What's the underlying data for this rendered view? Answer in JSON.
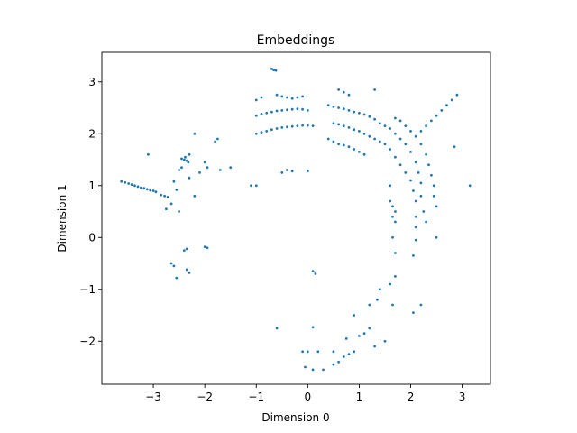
{
  "chart_data": {
    "type": "scatter",
    "title": "Embeddings",
    "xlabel": "Dimension 0",
    "ylabel": "Dimension 1",
    "xlim": [
      -4.0,
      3.55
    ],
    "ylim": [
      -2.83,
      3.57
    ],
    "xticks": [
      -3,
      -2,
      -1,
      0,
      1,
      2,
      3
    ],
    "yticks": [
      -2,
      -1,
      0,
      1,
      2,
      3
    ],
    "grid": false,
    "legend": "none",
    "marker_color": "#1f77b4",
    "series": [
      {
        "values": [
          [
            -3.62,
            1.08
          ],
          [
            -3.55,
            1.06
          ],
          [
            -3.48,
            1.04
          ],
          [
            -3.42,
            1.02
          ],
          [
            -3.36,
            1.0
          ],
          [
            -3.3,
            0.98
          ],
          [
            -3.24,
            0.96
          ],
          [
            -3.18,
            0.95
          ],
          [
            -3.12,
            0.93
          ],
          [
            -3.06,
            0.91
          ],
          [
            -3.0,
            0.9
          ],
          [
            -2.95,
            0.88
          ],
          [
            -2.85,
            0.82
          ],
          [
            -2.78,
            0.8
          ],
          [
            -2.72,
            0.78
          ],
          [
            -2.6,
            1.08
          ],
          [
            -2.55,
            0.92
          ],
          [
            -2.65,
            0.65
          ],
          [
            -2.75,
            0.55
          ],
          [
            -2.5,
            0.5
          ],
          [
            -2.45,
            1.52
          ],
          [
            -2.4,
            1.5
          ],
          [
            -2.38,
            1.55
          ],
          [
            -2.35,
            1.48
          ],
          [
            -2.32,
            1.45
          ],
          [
            -2.3,
            1.6
          ],
          [
            -2.5,
            1.3
          ],
          [
            -2.45,
            1.35
          ],
          [
            -2.3,
            1.15
          ],
          [
            -2.2,
            0.8
          ],
          [
            -2.1,
            1.25
          ],
          [
            -2.0,
            1.45
          ],
          [
            -1.95,
            1.35
          ],
          [
            -1.7,
            1.3
          ],
          [
            -1.5,
            1.35
          ],
          [
            -2.2,
            2.0
          ],
          [
            -1.8,
            1.85
          ],
          [
            -1.75,
            1.9
          ],
          [
            -3.1,
            1.6
          ],
          [
            -2.4,
            -0.25
          ],
          [
            -2.35,
            -0.22
          ],
          [
            -2.6,
            -0.55
          ],
          [
            -2.65,
            -0.5
          ],
          [
            -2.55,
            -0.78
          ],
          [
            -2.35,
            -0.62
          ],
          [
            -2.3,
            -0.68
          ],
          [
            -2.0,
            -0.18
          ],
          [
            -1.95,
            -0.2
          ],
          [
            -1.1,
            1.0
          ],
          [
            -1.0,
            1.0
          ],
          [
            -0.5,
            1.25
          ],
          [
            -0.4,
            1.3
          ],
          [
            -0.3,
            1.28
          ],
          [
            0.0,
            1.28
          ],
          [
            -1.0,
            2.0
          ],
          [
            -0.9,
            2.03
          ],
          [
            -0.8,
            2.05
          ],
          [
            -0.7,
            2.08
          ],
          [
            -0.6,
            2.1
          ],
          [
            -0.5,
            2.12
          ],
          [
            -0.4,
            2.13
          ],
          [
            -0.3,
            2.14
          ],
          [
            -0.2,
            2.15
          ],
          [
            -0.1,
            2.16
          ],
          [
            0.0,
            2.16
          ],
          [
            0.1,
            2.15
          ],
          [
            -1.0,
            2.35
          ],
          [
            -0.9,
            2.38
          ],
          [
            -0.8,
            2.4
          ],
          [
            -0.7,
            2.42
          ],
          [
            -0.6,
            2.44
          ],
          [
            -0.5,
            2.45
          ],
          [
            -0.4,
            2.46
          ],
          [
            -0.3,
            2.47
          ],
          [
            -0.2,
            2.48
          ],
          [
            -0.1,
            2.47
          ],
          [
            0.0,
            2.45
          ],
          [
            -1.0,
            2.65
          ],
          [
            -0.9,
            2.7
          ],
          [
            -0.6,
            2.75
          ],
          [
            -0.5,
            2.72
          ],
          [
            -0.4,
            2.7
          ],
          [
            -0.3,
            2.68
          ],
          [
            -0.2,
            2.7
          ],
          [
            -0.1,
            2.72
          ],
          [
            -0.7,
            3.25
          ],
          [
            -0.66,
            3.23
          ],
          [
            -0.62,
            3.22
          ],
          [
            0.4,
            2.55
          ],
          [
            0.5,
            2.52
          ],
          [
            0.6,
            2.5
          ],
          [
            0.7,
            2.48
          ],
          [
            0.8,
            2.45
          ],
          [
            0.9,
            2.42
          ],
          [
            1.0,
            2.4
          ],
          [
            1.1,
            2.37
          ],
          [
            1.2,
            2.33
          ],
          [
            1.3,
            2.28
          ],
          [
            0.5,
            2.2
          ],
          [
            0.6,
            2.18
          ],
          [
            0.7,
            2.15
          ],
          [
            0.8,
            2.12
          ],
          [
            0.9,
            2.08
          ],
          [
            1.0,
            2.05
          ],
          [
            1.1,
            2.0
          ],
          [
            1.2,
            1.95
          ],
          [
            1.3,
            1.9
          ],
          [
            1.4,
            1.85
          ],
          [
            0.4,
            1.9
          ],
          [
            0.5,
            1.85
          ],
          [
            0.6,
            1.8
          ],
          [
            0.7,
            1.78
          ],
          [
            0.8,
            1.75
          ],
          [
            0.9,
            1.7
          ],
          [
            1.0,
            1.65
          ],
          [
            1.1,
            1.6
          ],
          [
            0.6,
            2.85
          ],
          [
            0.7,
            2.8
          ],
          [
            0.8,
            2.75
          ],
          [
            1.3,
            2.85
          ],
          [
            1.4,
            2.2
          ],
          [
            1.5,
            2.15
          ],
          [
            1.6,
            2.1
          ],
          [
            1.7,
            2.0
          ],
          [
            1.8,
            1.9
          ],
          [
            1.9,
            1.8
          ],
          [
            2.0,
            1.65
          ],
          [
            2.1,
            1.45
          ],
          [
            2.15,
            1.25
          ],
          [
            2.2,
            1.05
          ],
          [
            2.2,
            0.8
          ],
          [
            2.25,
            0.5
          ],
          [
            1.5,
            1.8
          ],
          [
            1.6,
            1.7
          ],
          [
            1.7,
            1.55
          ],
          [
            1.8,
            1.4
          ],
          [
            1.9,
            1.25
          ],
          [
            2.0,
            1.1
          ],
          [
            2.05,
            0.9
          ],
          [
            2.1,
            0.7
          ],
          [
            2.1,
            0.4
          ],
          [
            2.1,
            0.2
          ],
          [
            2.1,
            -0.05
          ],
          [
            2.05,
            -0.35
          ],
          [
            1.7,
            2.3
          ],
          [
            1.8,
            2.25
          ],
          [
            1.9,
            2.15
          ],
          [
            2.0,
            2.05
          ],
          [
            2.1,
            1.95
          ],
          [
            2.2,
            1.8
          ],
          [
            2.3,
            1.6
          ],
          [
            2.35,
            1.4
          ],
          [
            2.4,
            1.2
          ],
          [
            2.45,
            1.0
          ],
          [
            2.45,
            0.8
          ],
          [
            2.5,
            0.6
          ],
          [
            1.6,
            0.7
          ],
          [
            1.65,
            0.6
          ],
          [
            1.7,
            0.5
          ],
          [
            1.65,
            0.4
          ],
          [
            1.7,
            0.3
          ],
          [
            1.65,
            0.0
          ],
          [
            1.7,
            -0.3
          ],
          [
            1.6,
            1.0
          ],
          [
            2.5,
            0.0
          ],
          [
            2.3,
            0.3
          ],
          [
            2.4,
            2.25
          ],
          [
            2.5,
            2.35
          ],
          [
            2.6,
            2.45
          ],
          [
            2.7,
            2.55
          ],
          [
            2.8,
            2.65
          ],
          [
            2.9,
            2.75
          ],
          [
            2.2,
            2.05
          ],
          [
            2.3,
            2.15
          ],
          [
            2.85,
            1.75
          ],
          [
            3.15,
            1.0
          ],
          [
            0.1,
            -0.65
          ],
          [
            0.15,
            -0.7
          ],
          [
            -0.6,
            -1.75
          ],
          [
            0.1,
            -1.73
          ],
          [
            -0.1,
            -2.2
          ],
          [
            0.0,
            -2.2
          ],
          [
            0.2,
            -2.2
          ],
          [
            -0.05,
            -2.5
          ],
          [
            0.1,
            -2.55
          ],
          [
            0.3,
            -2.55
          ],
          [
            0.5,
            -2.45
          ],
          [
            0.6,
            -2.4
          ],
          [
            0.7,
            -2.3
          ],
          [
            0.8,
            -2.25
          ],
          [
            0.9,
            -2.2
          ],
          [
            0.5,
            -2.2
          ],
          [
            1.0,
            -1.9
          ],
          [
            1.1,
            -1.85
          ],
          [
            1.2,
            -1.75
          ],
          [
            0.9,
            -1.5
          ],
          [
            1.2,
            -1.3
          ],
          [
            1.35,
            -1.2
          ],
          [
            1.4,
            -1.0
          ],
          [
            1.6,
            -0.9
          ],
          [
            1.7,
            -0.75
          ],
          [
            1.65,
            -1.3
          ],
          [
            2.05,
            -1.45
          ],
          [
            2.2,
            -1.3
          ],
          [
            1.5,
            -2.0
          ],
          [
            1.3,
            -2.1
          ],
          [
            0.75,
            -1.95
          ]
        ]
      }
    ]
  }
}
